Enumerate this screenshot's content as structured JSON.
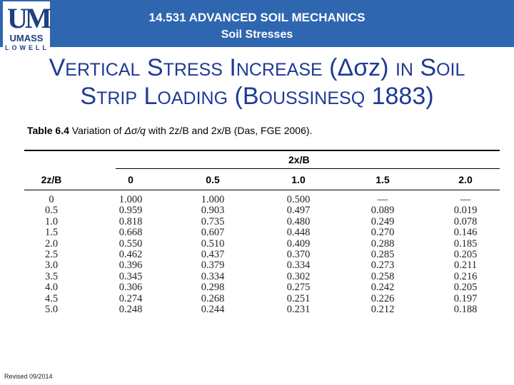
{
  "header": {
    "course": "14.531 ADVANCED SOIL MECHANICS",
    "topic": "Soil Stresses",
    "logo": {
      "letters": "UM",
      "name": "UMASS",
      "campus": "LOWELL"
    },
    "color": "#2f66b0"
  },
  "title": {
    "line1": {
      "cap_v": "V",
      "ertical": "ERTICAL",
      "cap_s": "S",
      "tress": "TRESS",
      "cap_i": "I",
      "ncrease": "NCREASE",
      "sym": "(Δσz)",
      "in": "IN",
      "cap_s2": "S",
      "oil": "OIL"
    },
    "line2": {
      "cap_s": "S",
      "trip": "TRIP",
      "cap_l": "L",
      "oading": "OADING",
      "open": "(B",
      "oussinesq": "OUSSINESQ",
      "year": "1883)"
    }
  },
  "table": {
    "caption_label": "Table 6.4",
    "caption_text_before": "Variation of",
    "caption_symbol": "Δσ/q",
    "caption_text_after": "with 2z/B and 2x/B (Das, FGE 2006).",
    "group_header": "2x/B",
    "row_header": "2z/B",
    "columns": [
      "0",
      "0.5",
      "1.0",
      "1.5",
      "2.0"
    ],
    "rows": [
      {
        "z": "0",
        "values": [
          "1.000",
          "1.000",
          "0.500",
          "—",
          "—"
        ]
      },
      {
        "z": "0.5",
        "values": [
          "0.959",
          "0.903",
          "0.497",
          "0.089",
          "0.019"
        ]
      },
      {
        "z": "1.0",
        "values": [
          "0.818",
          "0.735",
          "0.480",
          "0.249",
          "0.078"
        ]
      },
      {
        "z": "1.5",
        "values": [
          "0.668",
          "0.607",
          "0.448",
          "0.270",
          "0.146"
        ]
      },
      {
        "z": "2.0",
        "values": [
          "0.550",
          "0.510",
          "0.409",
          "0.288",
          "0.185"
        ]
      },
      {
        "z": "2.5",
        "values": [
          "0.462",
          "0.437",
          "0.370",
          "0.285",
          "0.205"
        ]
      },
      {
        "z": "3.0",
        "values": [
          "0.396",
          "0.379",
          "0.334",
          "0.273",
          "0.211"
        ]
      },
      {
        "z": "3.5",
        "values": [
          "0.345",
          "0.334",
          "0.302",
          "0.258",
          "0.216"
        ]
      },
      {
        "z": "4.0",
        "values": [
          "0.306",
          "0.298",
          "0.275",
          "0.242",
          "0.205"
        ]
      },
      {
        "z": "4.5",
        "values": [
          "0.274",
          "0.268",
          "0.251",
          "0.226",
          "0.197"
        ]
      },
      {
        "z": "5.0",
        "values": [
          "0.248",
          "0.244",
          "0.231",
          "0.212",
          "0.188"
        ]
      }
    ]
  },
  "footer": {
    "revised": "Revised 09/2014"
  }
}
